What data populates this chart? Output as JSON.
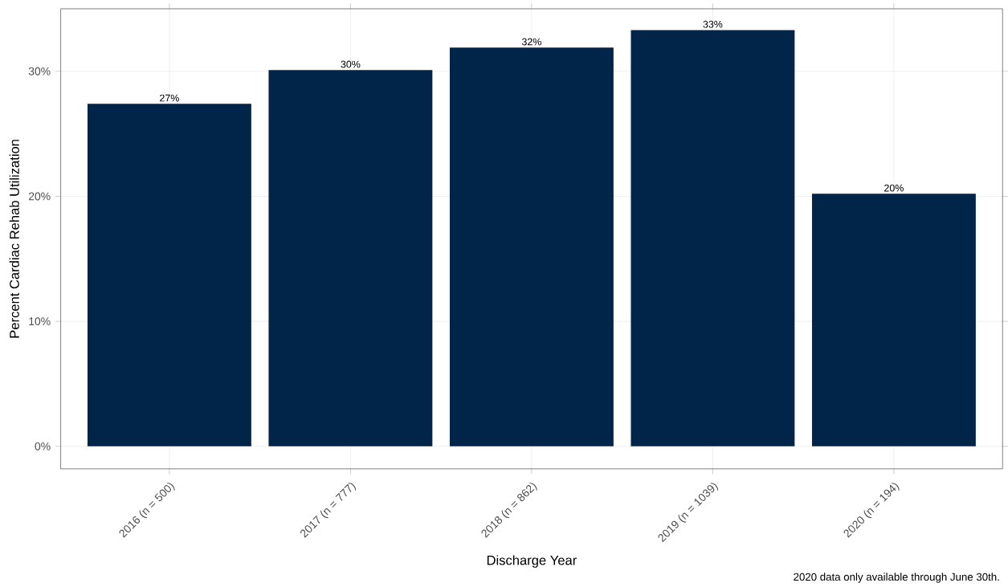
{
  "chart_data": {
    "type": "bar",
    "xlabel": "Discharge Year",
    "ylabel": "Percent Cardiac Rehab Utilization",
    "categories": [
      "2016 (n = 500)",
      "2017 (n = 777)",
      "2018 (n = 862)",
      "2019 (n = 1039)",
      "2020 (n = 194)"
    ],
    "values": [
      27.4,
      30.1,
      31.9,
      33.3,
      20.2
    ],
    "value_labels": [
      "27%",
      "30%",
      "32%",
      "33%",
      "20%"
    ],
    "color": "#002548",
    "ylim": [
      -1.8,
      35
    ],
    "yticks": [
      {
        "value": 0,
        "label": "0%"
      },
      {
        "value": 10,
        "label": "10%"
      },
      {
        "value": 20,
        "label": "20%"
      },
      {
        "value": 30,
        "label": "30%"
      }
    ],
    "grid": true,
    "annotations": [
      "2020 data only available through June 30th."
    ]
  }
}
